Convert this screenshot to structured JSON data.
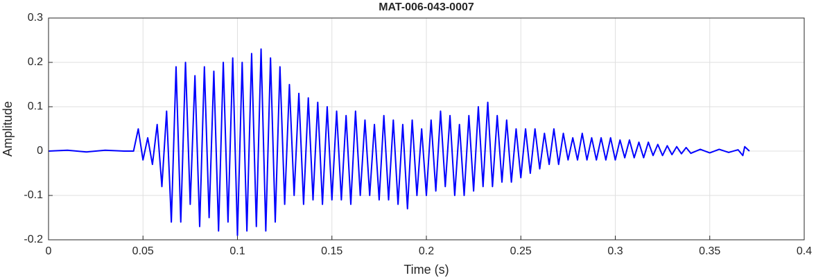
{
  "chart_data": {
    "type": "line",
    "title": "MAT-006-043-0007",
    "xlabel": "Time (s)",
    "ylabel": "Amplitude",
    "color": "#0000ff",
    "grid": true,
    "xlim": [
      0,
      0.4
    ],
    "xticks": [
      0,
      0.05,
      0.1,
      0.15,
      0.2,
      0.25,
      0.3,
      0.35,
      0.4
    ],
    "ylim": [
      -0.2,
      0.3
    ],
    "yticks": [
      -0.2,
      -0.1,
      0,
      0.1,
      0.2,
      0.3
    ],
    "x": [
      0,
      0.01,
      0.02,
      0.03,
      0.04,
      0.045,
      0.0475,
      0.05,
      0.0525,
      0.055,
      0.0575,
      0.06,
      0.0625,
      0.065,
      0.0675,
      0.07,
      0.0725,
      0.075,
      0.0775,
      0.08,
      0.0825,
      0.085,
      0.0875,
      0.09,
      0.0925,
      0.095,
      0.0975,
      0.1,
      0.1025,
      0.105,
      0.1075,
      0.11,
      0.1125,
      0.115,
      0.1175,
      0.12,
      0.1225,
      0.125,
      0.1275,
      0.13,
      0.1325,
      0.135,
      0.1375,
      0.14,
      0.1425,
      0.145,
      0.1475,
      0.15,
      0.1525,
      0.155,
      0.1575,
      0.16,
      0.1625,
      0.165,
      0.1675,
      0.17,
      0.1725,
      0.175,
      0.1775,
      0.18,
      0.1825,
      0.185,
      0.1875,
      0.19,
      0.1925,
      0.195,
      0.1975,
      0.2,
      0.2025,
      0.205,
      0.2075,
      0.21,
      0.2125,
      0.215,
      0.2175,
      0.22,
      0.2225,
      0.225,
      0.2275,
      0.23,
      0.2325,
      0.235,
      0.2375,
      0.24,
      0.2425,
      0.245,
      0.2475,
      0.25,
      0.2525,
      0.255,
      0.2575,
      0.26,
      0.2625,
      0.265,
      0.2675,
      0.27,
      0.2725,
      0.275,
      0.2775,
      0.28,
      0.2825,
      0.285,
      0.2875,
      0.29,
      0.2925,
      0.295,
      0.2975,
      0.3,
      0.3025,
      0.305,
      0.3075,
      0.31,
      0.3125,
      0.315,
      0.3175,
      0.32,
      0.3225,
      0.325,
      0.3275,
      0.33,
      0.3325,
      0.335,
      0.3375,
      0.34,
      0.345,
      0.35,
      0.355,
      0.36,
      0.365,
      0.3675,
      0.3685,
      0.371
    ],
    "values": [
      0,
      0.002,
      -0.002,
      0.002,
      0,
      0,
      0.05,
      -0.02,
      0.03,
      -0.03,
      0.06,
      -0.08,
      0.09,
      -0.16,
      0.19,
      -0.16,
      0.2,
      -0.12,
      0.17,
      -0.17,
      0.19,
      -0.15,
      0.18,
      -0.18,
      0.2,
      -0.16,
      0.21,
      -0.19,
      0.2,
      -0.18,
      0.22,
      -0.17,
      0.23,
      -0.18,
      0.21,
      -0.16,
      0.19,
      -0.12,
      0.15,
      -0.1,
      0.13,
      -0.12,
      0.12,
      -0.11,
      0.11,
      -0.12,
      0.1,
      -0.11,
      0.09,
      -0.11,
      0.08,
      -0.12,
      0.09,
      -0.1,
      0.07,
      -0.1,
      0.06,
      -0.11,
      0.08,
      -0.11,
      0.07,
      -0.12,
      0.06,
      -0.13,
      0.07,
      -0.1,
      0.05,
      -0.1,
      0.07,
      -0.09,
      0.09,
      -0.08,
      0.08,
      -0.1,
      0.06,
      -0.1,
      0.08,
      -0.09,
      0.1,
      -0.08,
      0.11,
      -0.08,
      0.08,
      -0.07,
      0.07,
      -0.07,
      0.05,
      -0.06,
      0.05,
      -0.05,
      0.05,
      -0.04,
      0.04,
      -0.03,
      0.05,
      -0.03,
      0.04,
      -0.02,
      0.03,
      -0.02,
      0.04,
      -0.02,
      0.03,
      -0.02,
      0.03,
      -0.02,
      0.03,
      -0.02,
      0.025,
      -0.015,
      0.025,
      -0.015,
      0.02,
      -0.015,
      0.02,
      -0.01,
      0.015,
      -0.01,
      0.012,
      -0.008,
      0.01,
      -0.006,
      0.008,
      -0.005,
      0.004,
      -0.004,
      0.004,
      -0.003,
      0.003,
      -0.01,
      0.01,
      0
    ]
  }
}
